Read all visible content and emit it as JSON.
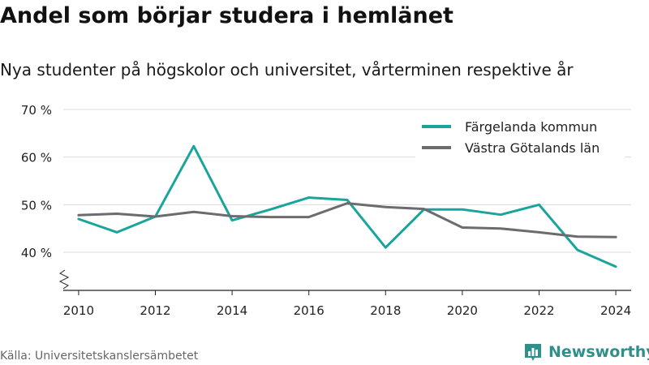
{
  "title": "Andel som börjar studera i hemlänet",
  "subtitle": "Nya studenter på högskolor och universitet, vårterminen respektive år",
  "source": "Källa: Universitetskanslersämbetet",
  "brand": {
    "name": "Newsworthy",
    "icon": "newsworthy-logo-icon",
    "color": "#2f8f8a"
  },
  "chart_data": {
    "type": "line",
    "x": [
      2010,
      2011,
      2012,
      2013,
      2014,
      2015,
      2016,
      2017,
      2018,
      2019,
      2020,
      2021,
      2022,
      2023,
      2024
    ],
    "series": [
      {
        "name": "Färgelanda kommun",
        "color": "#1aa59c",
        "values": [
          47.0,
          44.2,
          47.5,
          62.3,
          46.7,
          49.0,
          51.5,
          51.0,
          41.0,
          49.0,
          49.0,
          47.9,
          50.0,
          40.5,
          37.0
        ]
      },
      {
        "name": "Västra Götalands län",
        "color": "#6b6b70",
        "values": [
          47.8,
          48.1,
          47.5,
          48.5,
          47.6,
          47.4,
          47.4,
          50.3,
          49.5,
          49.1,
          45.2,
          45.0,
          44.2,
          43.3,
          43.2
        ]
      }
    ],
    "x_ticks": [
      2010,
      2012,
      2014,
      2016,
      2018,
      2020,
      2022,
      2024
    ],
    "x_tick_labels": [
      "2010",
      "2012",
      "2014",
      "2016",
      "2018",
      "2020",
      "2022",
      "2024"
    ],
    "y_ticks": [
      40,
      50,
      60,
      70
    ],
    "y_tick_labels": [
      "40 %",
      "50 %",
      "60 %",
      "70 %"
    ],
    "ylim": [
      32,
      70
    ],
    "xlim": [
      2009.6,
      2024.4
    ],
    "y_axis_break": true,
    "grid": true,
    "legend_position": "top-right",
    "xlabel": "",
    "ylabel": ""
  }
}
